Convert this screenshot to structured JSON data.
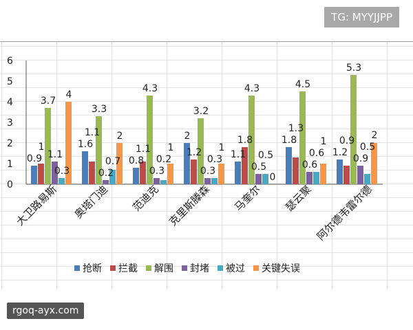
{
  "watermark_top": "TG: MYYJJPP",
  "watermark_bottom": "rgoq-ayx.com",
  "chart_data": {
    "type": "bar",
    "categories": [
      "大卫路易斯",
      "奥塔门迪",
      "范迪克",
      "克里斯滕森",
      "马奎尔",
      "瑟云聚",
      "阿尔德韦雷尔德"
    ],
    "series": [
      {
        "name": "抢断",
        "color": "#4a7ebb",
        "values": [
          0.9,
          1.6,
          0.8,
          2,
          1.1,
          1.8,
          1.2
        ]
      },
      {
        "name": "拦截",
        "color": "#be4b48",
        "values": [
          1,
          1.1,
          1.1,
          1.2,
          1.8,
          1.3,
          0.9
        ]
      },
      {
        "name": "解围",
        "color": "#98b954",
        "values": [
          3.7,
          3.3,
          4.3,
          3.2,
          4.3,
          4.5,
          5.3
        ]
      },
      {
        "name": "封堵",
        "color": "#7d60a0",
        "values": [
          1.1,
          0.2,
          0.3,
          0.3,
          0.5,
          0.6,
          0.9
        ]
      },
      {
        "name": "被过",
        "color": "#46aac5",
        "values": [
          0.3,
          0.7,
          0.2,
          0.3,
          0.5,
          0.6,
          0.5
        ]
      },
      {
        "name": "关键失误",
        "color": "#f79646",
        "values": [
          4,
          2,
          1,
          1,
          0,
          1,
          2
        ]
      }
    ],
    "yticks": [
      "0",
      "1",
      "2",
      "3",
      "4",
      "5",
      "6"
    ],
    "ylim": [
      0,
      6
    ],
    "legend": "bottom",
    "grid": false
  }
}
